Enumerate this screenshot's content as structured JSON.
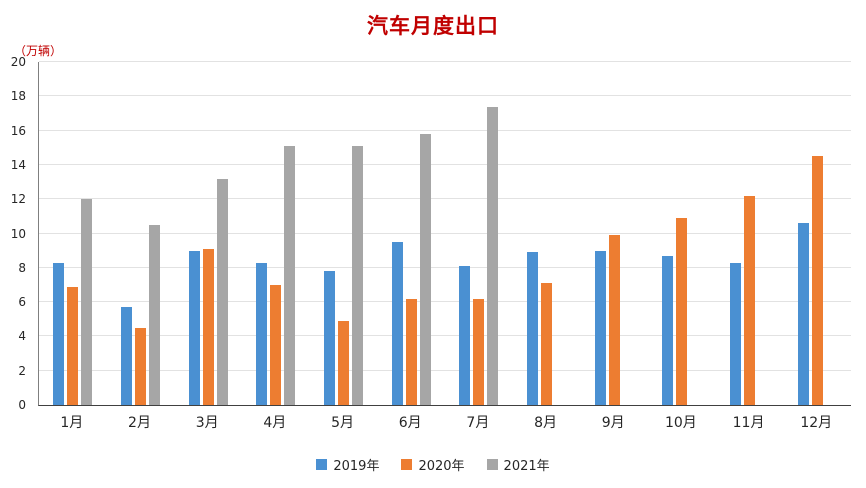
{
  "title": "汽车月度出口",
  "unit_label": "（万辆）",
  "colors": {
    "title": "#c00000",
    "series_2019": "#4a90d2",
    "series_2020": "#ed7d31",
    "series_2021": "#a6a6a6",
    "gridline": "#e2e2e2"
  },
  "chart_data": {
    "type": "bar",
    "title": "汽车月度出口",
    "ylabel": "（万辆）",
    "xlabel": "",
    "categories": [
      "1月",
      "2月",
      "3月",
      "4月",
      "5月",
      "6月",
      "7月",
      "8月",
      "9月",
      "10月",
      "11月",
      "12月"
    ],
    "series": [
      {
        "name": "2019年",
        "color": "#4a90d2",
        "values": [
          8.3,
          5.7,
          9.0,
          8.3,
          7.8,
          9.5,
          8.1,
          8.9,
          9.0,
          8.7,
          8.3,
          10.6
        ]
      },
      {
        "name": "2020年",
        "color": "#ed7d31",
        "values": [
          6.9,
          4.5,
          9.1,
          7.0,
          4.9,
          6.2,
          6.2,
          7.1,
          9.9,
          10.9,
          12.2,
          14.5
        ]
      },
      {
        "name": "2021年",
        "color": "#a6a6a6",
        "values": [
          12.0,
          10.5,
          13.2,
          15.1,
          15.1,
          15.8,
          17.4,
          null,
          null,
          null,
          null,
          null
        ]
      }
    ],
    "ylim": [
      0,
      20
    ],
    "ytick_step": 2,
    "grid": true,
    "legend_position": "bottom"
  }
}
